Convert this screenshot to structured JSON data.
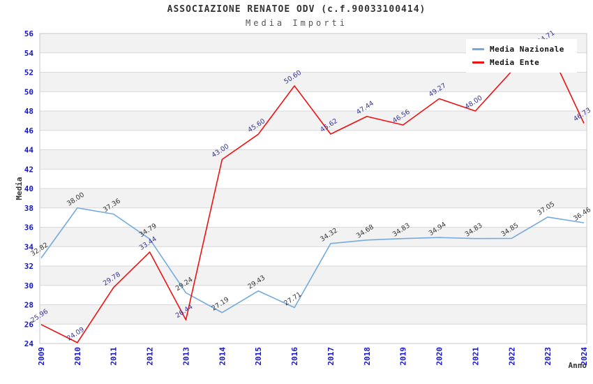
{
  "title": "ASSOCIAZIONE RENATOE ODV (c.f.90033100414)",
  "subtitle": "Media Importi",
  "chart_data": {
    "type": "line",
    "x": [
      "2009",
      "2010",
      "2011",
      "2012",
      "2013",
      "2014",
      "2015",
      "2016",
      "2017",
      "2018",
      "2019",
      "2020",
      "2021",
      "2022",
      "2023",
      "2024"
    ],
    "xlabel": "Anno",
    "ylabel": "Media",
    "ylim": [
      24,
      56
    ],
    "y_tick_step": 2,
    "grid": "horizontal",
    "legend_position": "top-right-inside",
    "alternating_bands": true,
    "series": [
      {
        "name": "Media Nazionale",
        "color": "#74aadd",
        "label_color": "#333333",
        "values": [
          32.82,
          38.0,
          37.36,
          34.79,
          29.24,
          27.19,
          29.43,
          27.71,
          34.32,
          34.68,
          34.83,
          34.94,
          34.83,
          34.85,
          37.05,
          36.46
        ],
        "value_labels": [
          "32.82",
          "38.00",
          "37.36",
          "34.79",
          "29.24",
          "27.19",
          "29.43",
          "27.71",
          "34.32",
          "34.68",
          "34.83",
          "34.94",
          "34.83",
          "34.85",
          "37.05",
          "36.46"
        ]
      },
      {
        "name": "Media Ente",
        "color": "#ee1111",
        "label_color": "#333399",
        "values": [
          25.96,
          24.09,
          29.78,
          33.44,
          26.44,
          43.0,
          45.6,
          50.6,
          45.62,
          47.44,
          46.56,
          49.27,
          48.0,
          52.1,
          54.71,
          46.73
        ],
        "value_labels": [
          "25.96",
          "24.09",
          "29.78",
          "33.44",
          "26.44",
          "43.00",
          "45.60",
          "50.60",
          "45.62",
          "47.44",
          "46.56",
          "49.27",
          "48.00",
          "",
          "54.71",
          "46.73"
        ]
      }
    ],
    "note": "2022 Media Ente value label is hidden behind the legend box"
  },
  "colors": {
    "tick_label": "#1414cc",
    "axis_title": "#333333",
    "band": "#f2f2f2",
    "grid": "#d8d8d8",
    "plot_border": "#c8c8c8",
    "background": "#ffffff"
  }
}
